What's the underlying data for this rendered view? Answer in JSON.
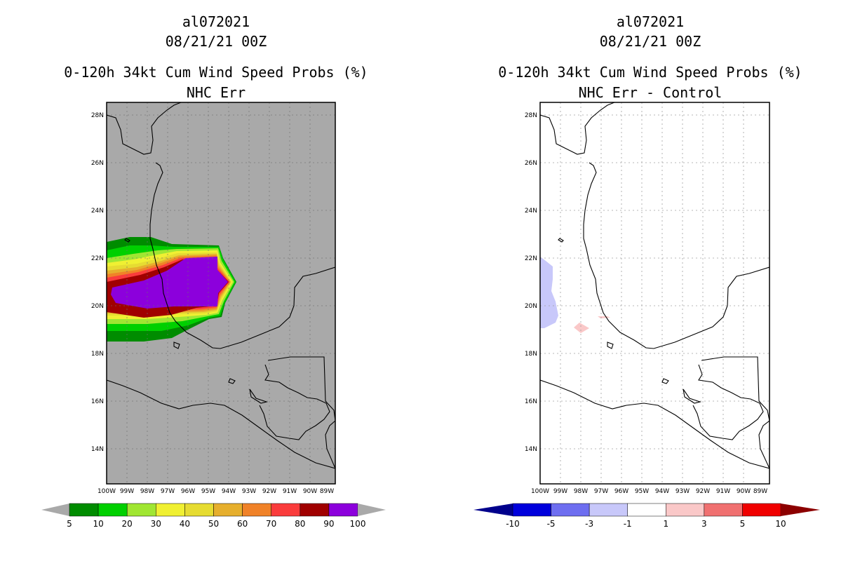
{
  "left_panel": {
    "title_line1": "al072021",
    "title_line2": "08/21/21 00Z",
    "title_line3": "0-120h 34kt Cum Wind Speed Probs (%)",
    "title_line4": "NHC Err",
    "background_color": "#a9a9a9",
    "colorbar": {
      "labels": [
        "5",
        "10",
        "20",
        "30",
        "40",
        "50",
        "60",
        "70",
        "80",
        "90",
        "100"
      ],
      "colors": [
        "#008c00",
        "#00d000",
        "#a0e632",
        "#f0f032",
        "#e6dc32",
        "#e6af2d",
        "#f08228",
        "#fa3c3c",
        "#a00000",
        "#8c00dc"
      ],
      "low_arrow_color": "#a9a9a9",
      "high_arrow_color": "#a9a9a9"
    }
  },
  "right_panel": {
    "title_line1": "al072021",
    "title_line2": "08/21/21 00Z",
    "title_line3": "0-120h 34kt Cum Wind Speed Probs (%)",
    "title_line4": "NHC Err - Control",
    "background_color": "#ffffff",
    "colorbar": {
      "labels": [
        "-10",
        "-5",
        "-3",
        "-1",
        "1",
        "3",
        "5",
        "10"
      ],
      "colors": [
        "#0000dc",
        "#6e6ef0",
        "#c8c8fa",
        "#ffffff",
        "#fac8c8",
        "#f07070",
        "#f00000"
      ],
      "low_arrow_color": "#00008c",
      "high_arrow_color": "#8c0000"
    }
  },
  "map": {
    "lat_labels": [
      "28N",
      "26N",
      "24N",
      "22N",
      "20N",
      "18N",
      "16N",
      "14N"
    ],
    "lon_labels": [
      "100W",
      "99W",
      "98W",
      "97W",
      "96W",
      "95W",
      "94W",
      "93W",
      "92W",
      "91W",
      "90W",
      "89W"
    ],
    "coastline_color": "#000000",
    "grid_color": "#a0a0a0"
  }
}
